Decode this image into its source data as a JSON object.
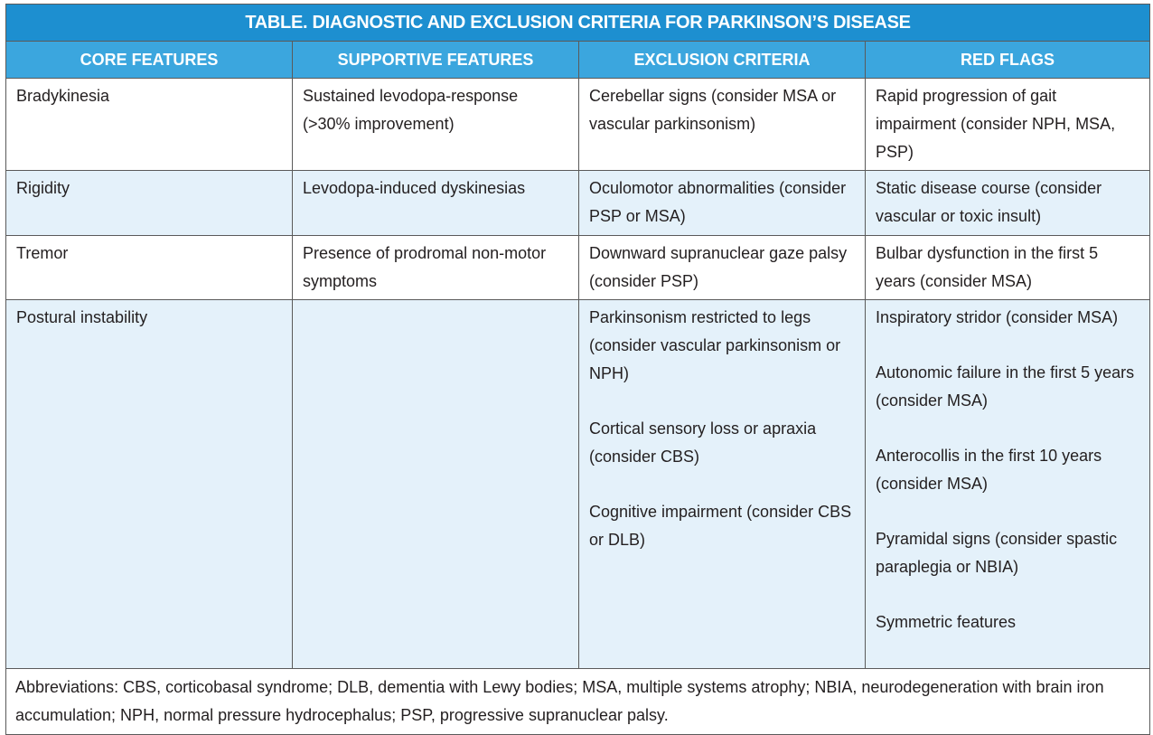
{
  "table": {
    "title": "TABLE. DIAGNOSTIC AND EXCLUSION CRITERIA FOR PARKINSON’S DISEASE",
    "headers": [
      "CORE FEATURES",
      "SUPPORTIVE FEATURES",
      "EXCLUSION CRITERIA",
      "RED FLAGS"
    ],
    "rows": [
      [
        [
          "Bradykinesia"
        ],
        [
          "Sustained levodopa-response (>30% improvement)"
        ],
        [
          "Cerebellar signs (consider MSA or vascular parkinsonism)"
        ],
        [
          "Rapid progression of gait impairment (consider NPH, MSA, PSP)"
        ]
      ],
      [
        [
          "Rigidity"
        ],
        [
          "Levodopa-induced dyskinesias"
        ],
        [
          "Oculomotor abnormalities (consider PSP or MSA)"
        ],
        [
          "Static disease course (consider vascular or toxic insult)"
        ]
      ],
      [
        [
          "Tremor"
        ],
        [
          "Presence of prodromal non-motor symptoms"
        ],
        [
          "Downward supranuclear gaze palsy (consider PSP)"
        ],
        [
          "Bulbar dysfunction in the first 5 years (consider MSA)"
        ]
      ],
      [
        [
          "Postural instability"
        ],
        [],
        [
          "Parkinsonism restricted to legs (consider vascular parkinsonism or NPH)",
          "Cortical sensory loss or apraxia (consider CBS)",
          "Cognitive impairment (consider CBS or DLB)"
        ],
        [
          "Inspiratory stridor (consider MSA)",
          "Autonomic failure in the first 5 years (consider MSA)",
          "Anterocollis in the first 10 years (consider MSA)",
          "Pyramidal signs (consider spastic paraplegia or NBIA)",
          "Symmetric features"
        ]
      ]
    ],
    "footnote": "Abbreviations: CBS, corticobasal syndrome; DLB, dementia with Lewy bodies; MSA, multiple systems atrophy; NBIA, neurodegeneration with brain iron accumulation; NPH, normal pressure hydrocephalus; PSP, progressive supranuclear palsy."
  }
}
